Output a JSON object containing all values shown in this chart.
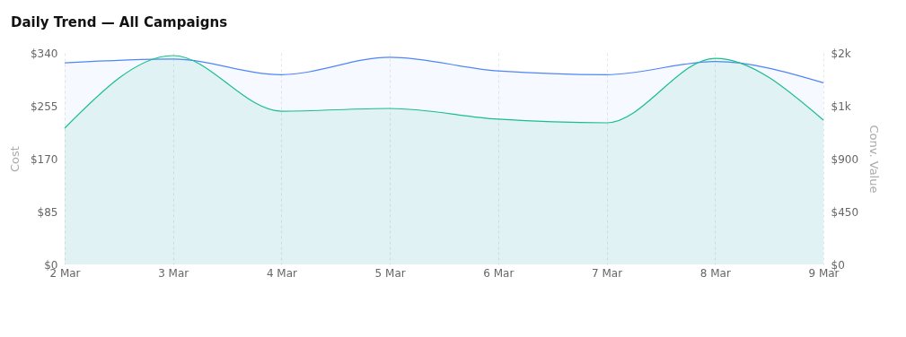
{
  "chart_data": {
    "type": "area",
    "title": "Daily Trend — All Campaigns",
    "ylabel": "Cost",
    "y2label": "Conv. Value",
    "categories": [
      "2 Mar",
      "3 Mar",
      "4 Mar",
      "5 Mar",
      "6 Mar",
      "7 Mar",
      "8 Mar",
      "9 Mar"
    ],
    "series": [
      {
        "color": "#4f86f7",
        "values": [
          324,
          330,
          305,
          333,
          311,
          305,
          326,
          292
        ]
      },
      {
        "color": "#19be8a",
        "axis": "y2",
        "values": [
          1159,
          1777,
          1304,
          1327,
          1236,
          1205,
          1754,
          1228
        ]
      }
    ],
    "ylim": [
      0,
      340
    ],
    "yticks": [
      {
        "value": 0,
        "label": "$0"
      },
      {
        "value": 85,
        "label": "$85"
      },
      {
        "value": 170,
        "label": "$170"
      },
      {
        "value": 255,
        "label": "$255"
      },
      {
        "value": 340,
        "label": "$340"
      }
    ],
    "y2lim": [
      0,
      1800
    ],
    "y2ticks": [
      {
        "value": 0,
        "label": "$0"
      },
      {
        "value": 450,
        "label": "$450"
      },
      {
        "value": 900,
        "label": "$900"
      },
      {
        "value": 1350,
        "label": "$1k"
      },
      {
        "value": 1800,
        "label": "$2k"
      }
    ],
    "grid": "x"
  }
}
